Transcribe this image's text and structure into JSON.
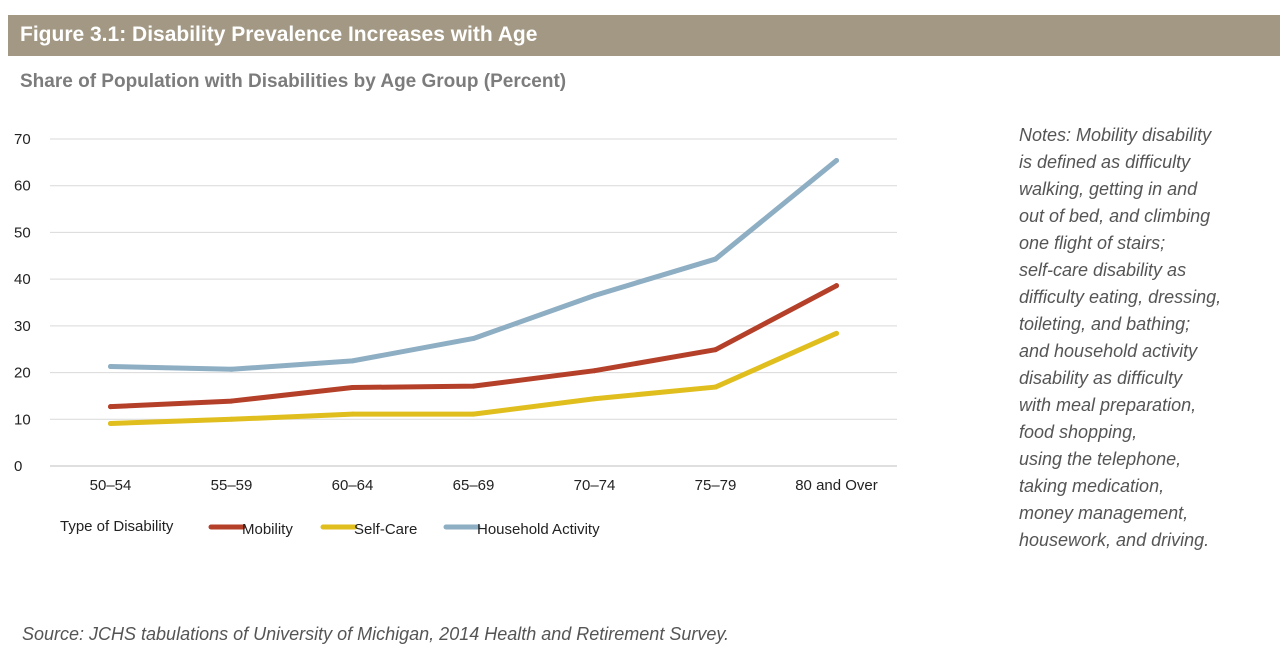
{
  "figure": {
    "title": "Figure 3.1: Disability Prevalence Increases with Age",
    "subtitle": "Share of Population with Disabilities by Age Group (Percent)"
  },
  "notes": [
    "Notes: Mobility disability",
    "is defined as difficulty",
    "walking, getting in and",
    "out of bed, and climbing",
    "one flight of stairs;",
    "self-care disability as",
    "difficulty eating, dressing,",
    "toileting, and bathing;",
    "and household activity",
    "disability as difficulty",
    "with meal preparation,",
    "food shopping,",
    "using the telephone,",
    "taking medication,",
    "money management,",
    "housework, and driving."
  ],
  "source": "Source: JCHS tabulations of University of Michigan, 2014 Health and Retirement Survey.",
  "colors": {
    "header_bg": "#a29883",
    "mobility": "#b5402a",
    "self_care": "#e0be1e",
    "household_activity": "#8eaec3",
    "grid": "#d9d9d9"
  },
  "chart_data": {
    "type": "line",
    "title": "Share of Population with Disabilities by Age Group (Percent)",
    "xlabel": "",
    "ylabel": "",
    "categories": [
      "50–54",
      "55–59",
      "60–64",
      "65–69",
      "70–74",
      "75–79",
      "80 and Over"
    ],
    "yticks": [
      0,
      10,
      20,
      30,
      40,
      50,
      60,
      70
    ],
    "ylim": [
      0,
      70
    ],
    "grid": true,
    "legend_title": "Type of Disability",
    "legend_position": "bottom-left",
    "series": [
      {
        "name": "Mobility",
        "color": "#b5402a",
        "values": [
          12.7,
          13.9,
          16.8,
          17.1,
          20.4,
          24.9,
          38.6
        ]
      },
      {
        "name": "Self-Care",
        "color": "#e0be1e",
        "values": [
          9.1,
          10.0,
          11.1,
          11.1,
          14.4,
          16.9,
          28.4
        ]
      },
      {
        "name": "Household Activity",
        "color": "#8eaec3",
        "values": [
          21.3,
          20.7,
          22.5,
          27.3,
          36.5,
          44.3,
          65.4
        ]
      }
    ]
  }
}
